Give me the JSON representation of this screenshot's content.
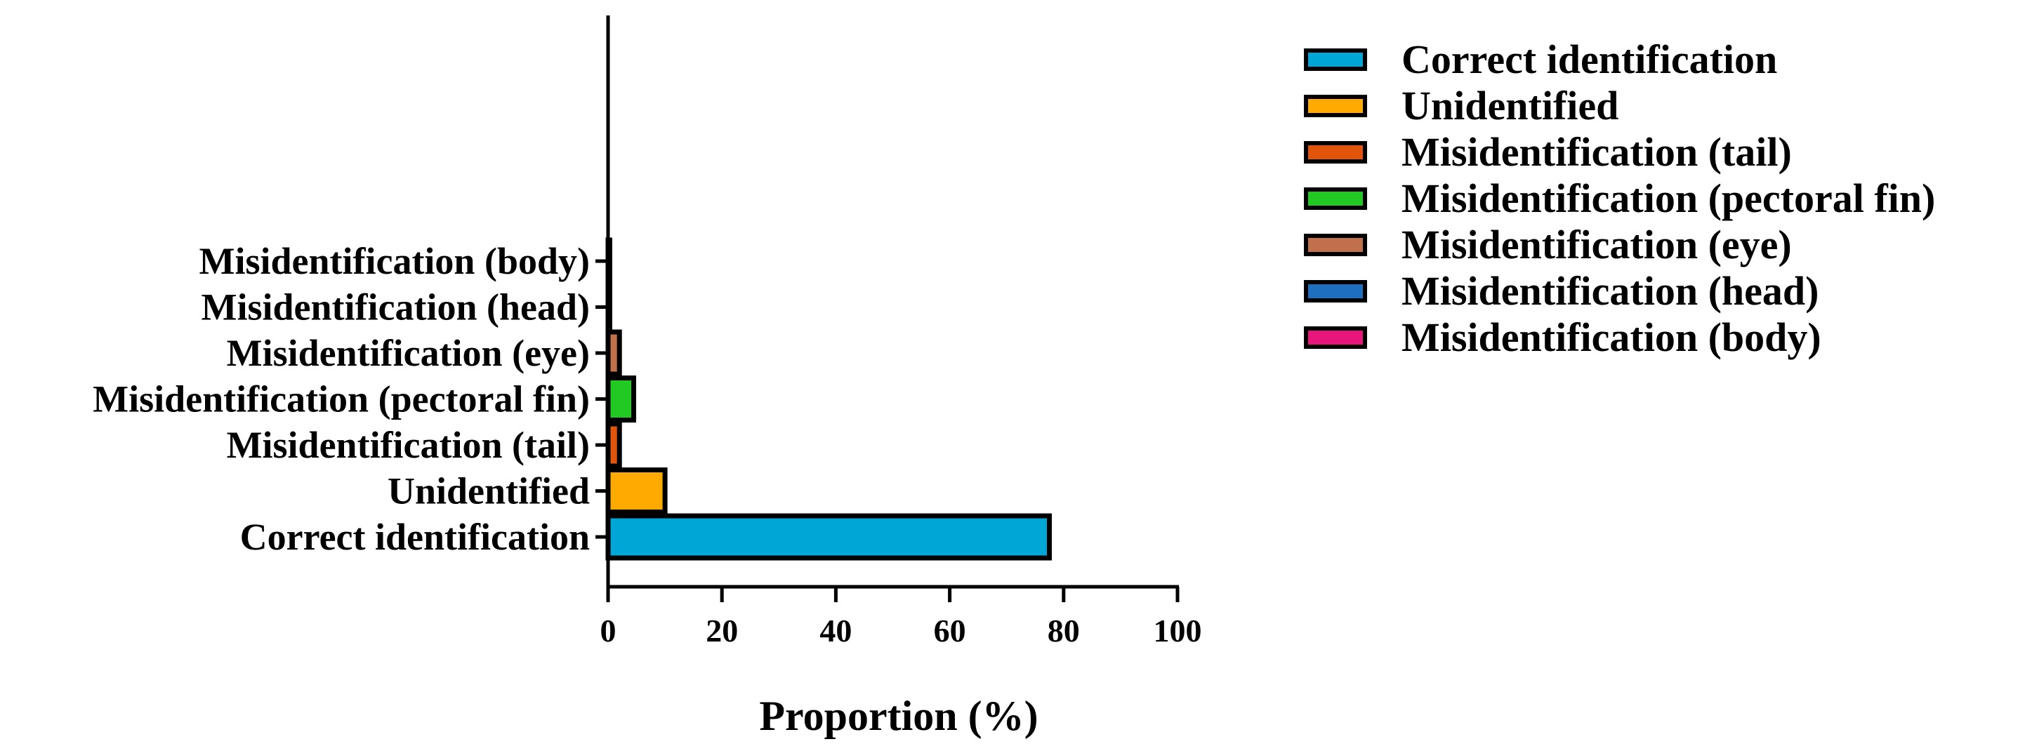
{
  "chart_data": {
    "type": "bar",
    "orientation": "horizontal",
    "title": "",
    "xlabel": "Proportion (%)",
    "ylabel": "",
    "xlim": [
      0,
      100
    ],
    "xticks": [
      0,
      20,
      40,
      60,
      80,
      100
    ],
    "grid": false,
    "legend_position": "right",
    "categories": [
      "Correct identification",
      "Unidentified",
      "Misidentification (tail)",
      "Misidentification (pectoral fin)",
      "Misidentification (eye)",
      "Misidentification (head)",
      "Misidentification (body)"
    ],
    "values": [
      77.5,
      10.0,
      2.0,
      4.5,
      2.0,
      0.3,
      0.3
    ],
    "colors": [
      "#00A6D6",
      "#FFAA00",
      "#E2540A",
      "#22C922",
      "#C0704A",
      "#1E6FBF",
      "#E8157A"
    ],
    "legend": [
      {
        "label": "Correct identification",
        "color": "#00A6D6"
      },
      {
        "label": "Unidentified",
        "color": "#FFAA00"
      },
      {
        "label": "Misidentification (tail)",
        "color": "#E2540A"
      },
      {
        "label": "Misidentification (pectoral fin)",
        "color": "#22C922"
      },
      {
        "label": "Misidentification (eye)",
        "color": "#C0704A"
      },
      {
        "label": "Misidentification (head)",
        "color": "#1E6FBF"
      },
      {
        "label": "Misidentification (body)",
        "color": "#E8157A"
      }
    ]
  }
}
